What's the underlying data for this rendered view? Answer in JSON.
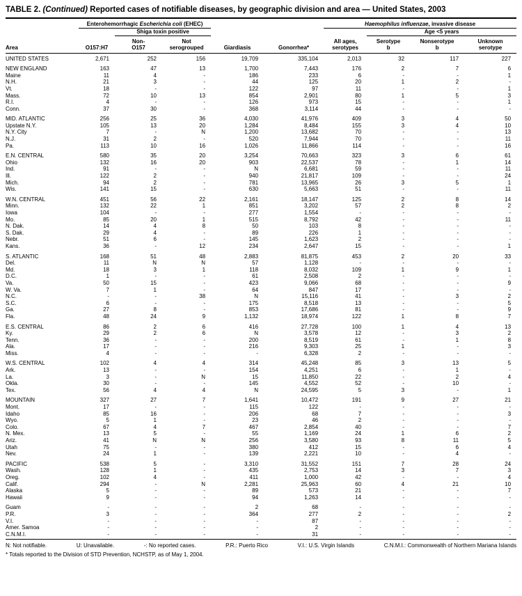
{
  "title": {
    "prefix": "TABLE 2. ",
    "continued": "(Continued)",
    "rest": " Reported cases of notifiable diseases, by geographic division and area — United States, 2003"
  },
  "table": {
    "groups": {
      "ehec_prefix": "Enterohemorrhagic ",
      "ehec_italic": "Escherichia coli",
      "ehec_suffix": " (EHEC)",
      "shiga": "Shiga toxin positive",
      "hinf_italic": "Haemophilus influenzae",
      "hinf_suffix": ", invasive disease",
      "age": "Age <5 years"
    },
    "columns": [
      "Area",
      "O157:H7",
      "Non-\nO157",
      "Not\nserogrouped",
      "Giardiasis",
      "Gonorrhea*",
      "All ages,\nserotypes",
      "Serotype\nb",
      "Nonserotype\nb",
      "Unknown\nserotype"
    ],
    "sections": [
      {
        "rows": [
          {
            "area": "UNITED STATES",
            "v": [
              "2,671",
              "252",
              "156",
              "19,709",
              "335,104",
              "2,013",
              "32",
              "117",
              "227"
            ]
          }
        ]
      },
      {
        "rows": [
          {
            "area": "NEW ENGLAND",
            "v": [
              "163",
              "47",
              "13",
              "1,700",
              "7,443",
              "176",
              "2",
              "7",
              "6"
            ]
          },
          {
            "area": "Maine",
            "v": [
              "11",
              "4",
              "-",
              "186",
              "233",
              "6",
              "-",
              "-",
              "1"
            ]
          },
          {
            "area": "N.H.",
            "v": [
              "21",
              "3",
              "-",
              "44",
              "125",
              "20",
              "1",
              "2",
              "-"
            ]
          },
          {
            "area": "Vt.",
            "v": [
              "18",
              "-",
              "-",
              "122",
              "97",
              "11",
              "-",
              "-",
              "1"
            ]
          },
          {
            "area": "Mass.",
            "v": [
              "72",
              "10",
              "13",
              "854",
              "2,901",
              "80",
              "1",
              "5",
              "3"
            ]
          },
          {
            "area": "R.I.",
            "v": [
              "4",
              "-",
              "-",
              "126",
              "973",
              "15",
              "-",
              "-",
              "1"
            ]
          },
          {
            "area": "Conn.",
            "v": [
              "37",
              "30",
              "-",
              "368",
              "3,114",
              "44",
              "-",
              "-",
              "-"
            ]
          }
        ]
      },
      {
        "rows": [
          {
            "area": "MID. ATLANTIC",
            "v": [
              "256",
              "25",
              "36",
              "4,030",
              "41,976",
              "409",
              "3",
              "4",
              "50"
            ]
          },
          {
            "area": "Upstate N.Y.",
            "v": [
              "105",
              "13",
              "20",
              "1,284",
              "8,484",
              "155",
              "3",
              "4",
              "10"
            ]
          },
          {
            "area": "N.Y. City",
            "v": [
              "7",
              "-",
              "N",
              "1,200",
              "13,682",
              "70",
              "-",
              "-",
              "13"
            ]
          },
          {
            "area": "N.J.",
            "v": [
              "31",
              "2",
              "-",
              "520",
              "7,944",
              "70",
              "-",
              "-",
              "11"
            ]
          },
          {
            "area": "Pa.",
            "v": [
              "113",
              "10",
              "16",
              "1,026",
              "11,866",
              "114",
              "-",
              "-",
              "16"
            ]
          }
        ]
      },
      {
        "rows": [
          {
            "area": "E.N. CENTRAL",
            "v": [
              "580",
              "35",
              "20",
              "3,254",
              "70,663",
              "323",
              "3",
              "6",
              "61"
            ]
          },
          {
            "area": "Ohio",
            "v": [
              "132",
              "16",
              "20",
              "903",
              "22,537",
              "78",
              "-",
              "1",
              "14"
            ]
          },
          {
            "area": "Ind.",
            "v": [
              "91",
              "-",
              "-",
              "N",
              "6,681",
              "59",
              "-",
              "-",
              "11"
            ]
          },
          {
            "area": "Ill.",
            "v": [
              "122",
              "2",
              "-",
              "940",
              "21,817",
              "109",
              "-",
              "-",
              "24"
            ]
          },
          {
            "area": "Mich.",
            "v": [
              "94",
              "2",
              "-",
              "781",
              "13,965",
              "26",
              "3",
              "5",
              "1"
            ]
          },
          {
            "area": "Wis.",
            "v": [
              "141",
              "15",
              "-",
              "630",
              "5,663",
              "51",
              "-",
              "-",
              "11"
            ]
          }
        ]
      },
      {
        "rows": [
          {
            "area": "W.N. CENTRAL",
            "v": [
              "451",
              "56",
              "22",
              "2,161",
              "18,147",
              "125",
              "2",
              "8",
              "14"
            ]
          },
          {
            "area": "Minn.",
            "v": [
              "132",
              "22",
              "1",
              "851",
              "3,202",
              "57",
              "2",
              "8",
              "2"
            ]
          },
          {
            "area": "Iowa",
            "v": [
              "104",
              "-",
              "-",
              "277",
              "1,554",
              "-",
              "-",
              "-",
              "-"
            ]
          },
          {
            "area": "Mo.",
            "v": [
              "85",
              "20",
              "1",
              "515",
              "8,792",
              "42",
              "-",
              "-",
              "11"
            ]
          },
          {
            "area": "N. Dak.",
            "v": [
              "14",
              "4",
              "8",
              "50",
              "103",
              "8",
              "-",
              "-",
              "-"
            ]
          },
          {
            "area": "S. Dak.",
            "v": [
              "29",
              "4",
              "-",
              "89",
              "226",
              "1",
              "-",
              "-",
              "-"
            ]
          },
          {
            "area": "Nebr.",
            "v": [
              "51",
              "6",
              "-",
              "145",
              "1,623",
              "2",
              "-",
              "-",
              "-"
            ]
          },
          {
            "area": "Kans.",
            "v": [
              "36",
              "-",
              "12",
              "234",
              "2,647",
              "15",
              "-",
              "-",
              "1"
            ]
          }
        ]
      },
      {
        "rows": [
          {
            "area": "S. ATLANTIC",
            "v": [
              "168",
              "51",
              "48",
              "2,883",
              "81,875",
              "453",
              "2",
              "20",
              "33"
            ]
          },
          {
            "area": "Del.",
            "v": [
              "11",
              "N",
              "N",
              "57",
              "1,128",
              "-",
              "-",
              "-",
              "-"
            ]
          },
          {
            "area": "Md.",
            "v": [
              "18",
              "3",
              "1",
              "118",
              "8,032",
              "109",
              "1",
              "9",
              "1"
            ]
          },
          {
            "area": "D.C.",
            "v": [
              "1",
              "-",
              "-",
              "61",
              "2,508",
              "2",
              "-",
              "-",
              "-"
            ]
          },
          {
            "area": "Va.",
            "v": [
              "50",
              "15",
              "-",
              "423",
              "9,066",
              "68",
              "-",
              "-",
              "9"
            ]
          },
          {
            "area": "W. Va.",
            "v": [
              "7",
              "1",
              "-",
              "64",
              "847",
              "17",
              "-",
              "-",
              "-"
            ]
          },
          {
            "area": "N.C.",
            "v": [
              "-",
              "-",
              "38",
              "N",
              "15,116",
              "41",
              "-",
              "3",
              "2"
            ]
          },
          {
            "area": "S.C.",
            "v": [
              "6",
              "-",
              "-",
              "175",
              "8,518",
              "13",
              "-",
              "-",
              "5"
            ]
          },
          {
            "area": "Ga.",
            "v": [
              "27",
              "8",
              "-",
              "853",
              "17,686",
              "81",
              "-",
              "-",
              "9"
            ]
          },
          {
            "area": "Fla.",
            "v": [
              "48",
              "24",
              "9",
              "1,132",
              "18,974",
              "122",
              "1",
              "8",
              "7"
            ]
          }
        ]
      },
      {
        "rows": [
          {
            "area": "E.S. CENTRAL",
            "v": [
              "86",
              "2",
              "6",
              "416",
              "27,728",
              "100",
              "1",
              "4",
              "13"
            ]
          },
          {
            "area": "Ky.",
            "v": [
              "29",
              "2",
              "6",
              "N",
              "3,578",
              "12",
              "-",
              "3",
              "2"
            ]
          },
          {
            "area": "Tenn.",
            "v": [
              "36",
              "-",
              "-",
              "200",
              "8,519",
              "61",
              "-",
              "1",
              "8"
            ]
          },
          {
            "area": "Ala.",
            "v": [
              "17",
              "-",
              "-",
              "216",
              "9,303",
              "25",
              "1",
              "-",
              "3"
            ]
          },
          {
            "area": "Miss.",
            "v": [
              "4",
              "-",
              "-",
              "-",
              "6,328",
              "2",
              "-",
              "-",
              "-"
            ]
          }
        ]
      },
      {
        "rows": [
          {
            "area": "W.S. CENTRAL",
            "v": [
              "102",
              "4",
              "4",
              "314",
              "45,248",
              "85",
              "3",
              "13",
              "5"
            ]
          },
          {
            "area": "Ark.",
            "v": [
              "13",
              "-",
              "-",
              "154",
              "4,251",
              "6",
              "-",
              "1",
              "-"
            ]
          },
          {
            "area": "La.",
            "v": [
              "3",
              "-",
              "N",
              "15",
              "11,850",
              "22",
              "-",
              "2",
              "4"
            ]
          },
          {
            "area": "Okla.",
            "v": [
              "30",
              "-",
              "-",
              "145",
              "4,552",
              "52",
              "-",
              "10",
              "-"
            ]
          },
          {
            "area": "Tex.",
            "v": [
              "56",
              "4",
              "4",
              "N",
              "24,595",
              "5",
              "3",
              "-",
              "1"
            ]
          }
        ]
      },
      {
        "rows": [
          {
            "area": "MOUNTAIN",
            "v": [
              "327",
              "27",
              "7",
              "1,641",
              "10,472",
              "191",
              "9",
              "27",
              "21"
            ]
          },
          {
            "area": "Mont.",
            "v": [
              "17",
              "-",
              "-",
              "115",
              "122",
              "-",
              "-",
              "-",
              "-"
            ]
          },
          {
            "area": "Idaho",
            "v": [
              "85",
              "16",
              "-",
              "206",
              "68",
              "7",
              "-",
              "-",
              "3"
            ]
          },
          {
            "area": "Wyo.",
            "v": [
              "5",
              "1",
              "-",
              "23",
              "46",
              "2",
              "-",
              "-",
              "-"
            ]
          },
          {
            "area": "Colo.",
            "v": [
              "67",
              "4",
              "7",
              "467",
              "2,854",
              "40",
              "-",
              "-",
              "7"
            ]
          },
          {
            "area": "N. Mex.",
            "v": [
              "13",
              "5",
              "-",
              "55",
              "1,169",
              "24",
              "1",
              "6",
              "2"
            ]
          },
          {
            "area": "Ariz.",
            "v": [
              "41",
              "N",
              "N",
              "256",
              "3,580",
              "93",
              "8",
              "11",
              "5"
            ]
          },
          {
            "area": "Utah",
            "v": [
              "75",
              "-",
              "-",
              "380",
              "412",
              "15",
              "-",
              "6",
              "4"
            ]
          },
          {
            "area": "Nev.",
            "v": [
              "24",
              "1",
              "-",
              "139",
              "2,221",
              "10",
              "-",
              "4",
              "-"
            ]
          }
        ]
      },
      {
        "rows": [
          {
            "area": "PACIFIC",
            "v": [
              "538",
              "5",
              "-",
              "3,310",
              "31,552",
              "151",
              "7",
              "28",
              "24"
            ]
          },
          {
            "area": "Wash.",
            "v": [
              "128",
              "1",
              "-",
              "435",
              "2,753",
              "14",
              "3",
              "7",
              "3"
            ]
          },
          {
            "area": "Oreg.",
            "v": [
              "102",
              "4",
              "-",
              "411",
              "1,000",
              "42",
              "-",
              "-",
              "4"
            ]
          },
          {
            "area": "Calif.",
            "v": [
              "294",
              "-",
              "N",
              "2,281",
              "25,963",
              "60",
              "4",
              "21",
              "10"
            ]
          },
          {
            "area": "Alaska",
            "v": [
              "5",
              "-",
              "-",
              "89",
              "573",
              "21",
              "-",
              "-",
              "7"
            ]
          },
          {
            "area": "Hawaii",
            "v": [
              "9",
              "-",
              "-",
              "94",
              "1,263",
              "14",
              "-",
              "-",
              "-"
            ]
          }
        ]
      },
      {
        "rows": [
          {
            "area": "Guam",
            "v": [
              "-",
              "-",
              "-",
              "2",
              "68",
              "-",
              "-",
              "-",
              "-"
            ]
          },
          {
            "area": "P.R.",
            "v": [
              "3",
              "-",
              "-",
              "364",
              "277",
              "2",
              "-",
              "-",
              "2"
            ]
          },
          {
            "area": "V.I.",
            "v": [
              "-",
              "-",
              "-",
              "-",
              "87",
              "-",
              "-",
              "-",
              "-"
            ]
          },
          {
            "area": "Amer. Samoa",
            "v": [
              "-",
              "-",
              "-",
              "-",
              "2",
              "-",
              "-",
              "-",
              "-"
            ]
          },
          {
            "area": "C.N.M.I.",
            "v": [
              "-",
              "-",
              "-",
              "-",
              "31",
              "-",
              "-",
              "-",
              "-"
            ]
          }
        ]
      }
    ]
  },
  "footnotes": {
    "legend": [
      "N: Not notifiable.",
      "U: Unavailable.",
      "-: No reported cases.",
      "P.R.: Puerto Rico",
      "V.I.: U.S. Virgin Islands",
      "C.N.M.I.: Commonwealth of Northern Mariana Islands"
    ],
    "star_note": "* Totals reported to the Division of STD Prevention, NCHSTP, as of May 1, 2004."
  }
}
